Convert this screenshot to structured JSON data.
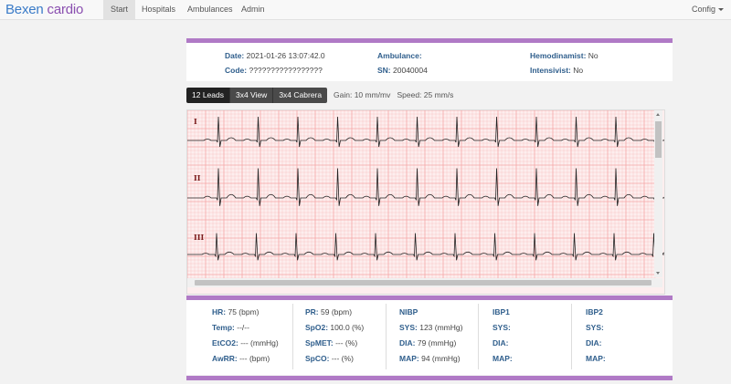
{
  "nav": {
    "brand_part1": "Bexen",
    "brand_part2": " cardio",
    "items": [
      "Start",
      "Hospitals",
      "Ambulances",
      "Admin"
    ],
    "config": "Config"
  },
  "info": {
    "date_label": "Date:",
    "date_value": "2021-01-26 13:07:42.0",
    "code_label": "Code:",
    "code_value": "?????????????????",
    "ambulance_label": "Ambulance:",
    "ambulance_value": "",
    "sn_label": "SN:",
    "sn_value": "20040004",
    "hemodinamist_label": "Hemodinamist:",
    "hemodinamist_value": "No",
    "intensivist_label": "Intensivist:",
    "intensivist_value": "No"
  },
  "views": {
    "buttons": [
      "12 Leads",
      "3x4 View",
      "3x4 Cabrera"
    ],
    "gain_label": "Gain:",
    "gain_value": "10 mm/mv",
    "speed_label": "Speed:",
    "speed_value": "25 mm/s"
  },
  "leads": [
    "I",
    "II",
    "III"
  ],
  "vitals": {
    "col1": [
      {
        "label": "HR:",
        "value": "75 (bpm)"
      },
      {
        "label": "Temp:",
        "value": "--/--"
      },
      {
        "label": "EtCO2:",
        "value": "--- (mmHg)"
      },
      {
        "label": "AwRR:",
        "value": "--- (bpm)"
      }
    ],
    "col2": [
      {
        "label": "PR:",
        "value": "59 (bpm)"
      },
      {
        "label": "SpO2:",
        "value": "100.0 (%)"
      },
      {
        "label": "SpMET:",
        "value": "--- (%)"
      },
      {
        "label": "SpCO:",
        "value": "--- (%)"
      }
    ],
    "col3": [
      {
        "label": "NIBP",
        "value": ""
      },
      {
        "label": "SYS:",
        "value": "123 (mmHg)"
      },
      {
        "label": "DIA:",
        "value": "79 (mmHg)"
      },
      {
        "label": "MAP:",
        "value": "94 (mmHg)"
      }
    ],
    "col4": [
      {
        "label": "IBP1",
        "value": ""
      },
      {
        "label": "SYS:",
        "value": ""
      },
      {
        "label": "DIA:",
        "value": ""
      },
      {
        "label": "MAP:",
        "value": ""
      }
    ],
    "col5": [
      {
        "label": "IBP2",
        "value": ""
      },
      {
        "label": "SYS:",
        "value": ""
      },
      {
        "label": "DIA:",
        "value": ""
      },
      {
        "label": "MAP:",
        "value": ""
      }
    ]
  },
  "colors": {
    "accent": "#b07ac6",
    "label_blue": "#2f5e8c",
    "grid": "#f4a6a6",
    "trace": "#222222"
  }
}
